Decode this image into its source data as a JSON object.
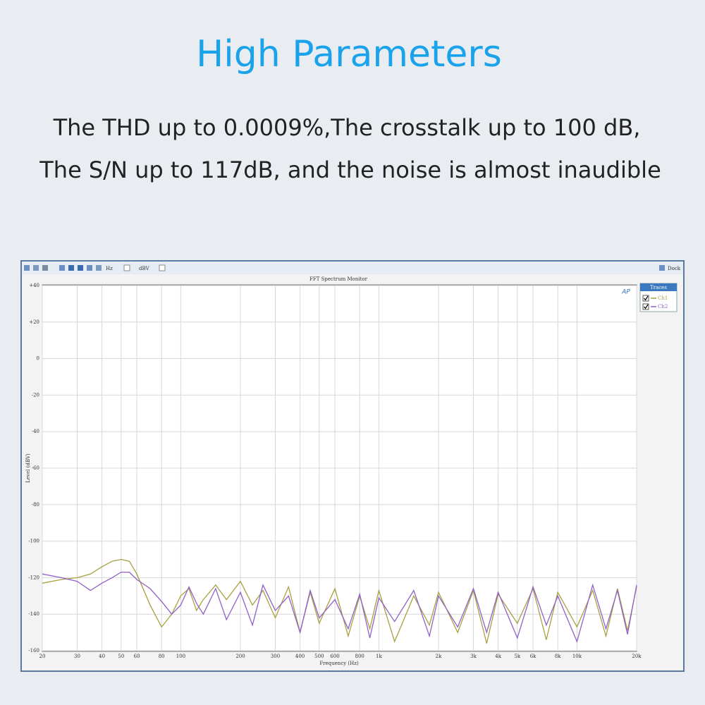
{
  "header": {
    "title": "High Parameters",
    "lines": [
      "The THD up to 0.0009%,The crosstalk up to 100 dB,",
      "The S/N up to 117dB, and the noise is almost inaudible"
    ]
  },
  "window": {
    "toolbar": {
      "x_unit": "Hz",
      "y_unit": "dBV"
    },
    "dock": "Dock",
    "legend_title": "Traces"
  },
  "chart_data": {
    "type": "line",
    "title": "FFT Spectrum Monitor",
    "x_label": "Frequency (Hz)",
    "y_label": "Level (dBV)",
    "xscale": "log",
    "grid": true,
    "xlim": [
      20,
      20000
    ],
    "ylim": [
      -160,
      40
    ],
    "xticks": [
      20,
      30,
      40,
      50,
      60,
      80,
      100,
      200,
      300,
      400,
      500,
      600,
      800,
      {
        "value": 1000,
        "label": "1k"
      },
      {
        "value": 2000,
        "label": "2k"
      },
      {
        "value": 3000,
        "label": "3k"
      },
      {
        "value": 4000,
        "label": "4k"
      },
      {
        "value": 5000,
        "label": "5k"
      },
      {
        "value": 6000,
        "label": "6k"
      },
      {
        "value": 8000,
        "label": "8k"
      },
      {
        "value": 10000,
        "label": "10k"
      },
      {
        "value": 20000,
        "label": "20k"
      }
    ],
    "yticks": [
      {
        "value": 40,
        "label": "+40"
      },
      {
        "value": 20,
        "label": "+20"
      },
      0,
      -20,
      -40,
      -60,
      -80,
      -100,
      -120,
      -140,
      -160
    ],
    "x": [
      20,
      25,
      30,
      35,
      40,
      45,
      50,
      55,
      60,
      70,
      80,
      90,
      100,
      110,
      120,
      130,
      150,
      170,
      200,
      230,
      260,
      300,
      350,
      400,
      450,
      500,
      600,
      700,
      800,
      900,
      1000,
      1200,
      1500,
      1800,
      2000,
      2500,
      3000,
      3500,
      4000,
      5000,
      6000,
      7000,
      8000,
      10000,
      12000,
      14000,
      16000,
      18000,
      20000
    ],
    "series": [
      {
        "name": "Ch1",
        "color": "#a8a040",
        "values": [
          -123,
          -121,
          -120,
          -118,
          -114,
          -111,
          -110,
          -111,
          -118,
          -135,
          -147,
          -140,
          -130,
          -126,
          -138,
          -132,
          -124,
          -132,
          -122,
          -135,
          -127,
          -142,
          -125,
          -150,
          -128,
          -145,
          -126,
          -152,
          -130,
          -148,
          -127,
          -155,
          -130,
          -146,
          -128,
          -150,
          -127,
          -156,
          -129,
          -145,
          -126,
          -154,
          -128,
          -147,
          -127,
          -152,
          -126,
          -149,
          -125
        ]
      },
      {
        "name": "Ch2",
        "color": "#9060c8",
        "values": [
          -118,
          -120,
          -122,
          -127,
          -123,
          -120,
          -117,
          -117,
          -121,
          -126,
          -133,
          -140,
          -135,
          -125,
          -134,
          -140,
          -126,
          -143,
          -128,
          -146,
          -124,
          -138,
          -130,
          -150,
          -127,
          -142,
          -132,
          -148,
          -129,
          -153,
          -131,
          -144,
          -127,
          -152,
          -130,
          -147,
          -126,
          -150,
          -128,
          -153,
          -125,
          -146,
          -130,
          -155,
          -124,
          -148,
          -127,
          -151,
          -124
        ]
      }
    ]
  }
}
